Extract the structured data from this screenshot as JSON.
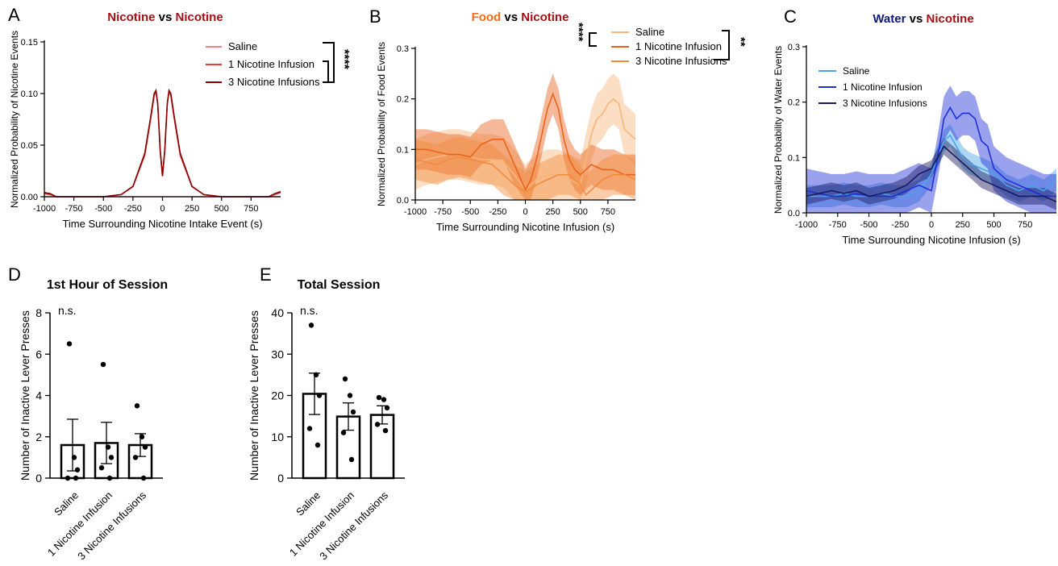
{
  "chart_data": [
    {
      "panel": "A",
      "type": "line",
      "title_parts": [
        {
          "text": "Nicotine",
          "color": "#a50f15"
        },
        {
          "text": " vs ",
          "color": "#000000"
        },
        {
          "text": "Nicotine",
          "color": "#a50f15"
        }
      ],
      "xlabel": "Time Surrounding Nicotine Intake Event (s)",
      "ylabel": "Normalized Probability of Nicotine Events",
      "xlim": [
        -1000,
        1000
      ],
      "ylim": [
        0,
        0.15
      ],
      "xticks": [
        -1000,
        -750,
        -500,
        -250,
        0,
        250,
        500,
        750
      ],
      "yticks": [
        0.0,
        0.05,
        0.1,
        0.15
      ],
      "ytick_labels": [
        "0.00",
        "0.05",
        "0.10",
        "0.15"
      ],
      "significance": "****",
      "series": [
        {
          "name": "Saline",
          "color": "#f08080",
          "x": [
            -1000,
            -500,
            -200,
            0,
            200,
            500,
            1000
          ],
          "y": [
            0,
            0,
            0,
            0,
            0,
            0,
            0
          ]
        },
        {
          "name": "1 Nicotine Infusion",
          "color": "#e0413f",
          "x": [
            -1000,
            -950,
            -900,
            -700,
            -500,
            -350,
            -250,
            -150,
            -100,
            -70,
            -55,
            -40,
            -20,
            0,
            20,
            40,
            55,
            70,
            100,
            150,
            250,
            350,
            500,
            700,
            900,
            950,
            1000
          ],
          "y": [
            0.003,
            0.002,
            0,
            0,
            0,
            0.002,
            0.01,
            0.04,
            0.075,
            0.098,
            0.102,
            0.09,
            0.045,
            0.02,
            0.045,
            0.09,
            0.102,
            0.098,
            0.075,
            0.04,
            0.01,
            0.002,
            0,
            0,
            0,
            0.002,
            0.004
          ]
        },
        {
          "name": "3 Nicotine Infusions",
          "color": "#8b0000",
          "x": [
            -1000,
            -950,
            -900,
            -700,
            -500,
            -350,
            -250,
            -150,
            -100,
            -70,
            -55,
            -40,
            -20,
            0,
            20,
            40,
            55,
            70,
            100,
            150,
            250,
            350,
            500,
            700,
            900,
            950,
            1000
          ],
          "y": [
            0.004,
            0.003,
            0,
            0,
            0,
            0.002,
            0.01,
            0.042,
            0.077,
            0.1,
            0.103,
            0.09,
            0.046,
            0.02,
            0.046,
            0.09,
            0.103,
            0.1,
            0.077,
            0.042,
            0.01,
            0.002,
            0,
            0,
            0,
            0.003,
            0.005
          ]
        }
      ]
    },
    {
      "panel": "B",
      "type": "line",
      "title_parts": [
        {
          "text": "Food",
          "color": "#f26b1d"
        },
        {
          "text": " vs ",
          "color": "#000000"
        },
        {
          "text": "Nicotine",
          "color": "#a50f15"
        }
      ],
      "xlabel": "Time Surrounding Nicotine Infusion (s)",
      "ylabel": "Normalized Probability of Food Events",
      "xlim": [
        -1000,
        1000
      ],
      "ylim": [
        0,
        0.3
      ],
      "xticks": [
        -1000,
        -750,
        -500,
        -250,
        0,
        250,
        500,
        750
      ],
      "yticks": [
        0.0,
        0.1,
        0.2,
        0.3
      ],
      "ytick_labels": [
        "0.0",
        "0.1",
        "0.2",
        "0.3"
      ],
      "significance": [
        "****",
        "**"
      ],
      "series": [
        {
          "name": "Saline",
          "color": "#f7b57a",
          "err": 0.05,
          "x": [
            -1000,
            -900,
            -800,
            -700,
            -600,
            -500,
            -400,
            -300,
            -200,
            -100,
            0,
            50,
            100,
            200,
            300,
            400,
            500,
            550,
            600,
            650,
            700,
            750,
            800,
            850,
            900,
            1000
          ],
          "y": [
            0.07,
            0.08,
            0.085,
            0.09,
            0.09,
            0.085,
            0.08,
            0.08,
            0.075,
            0.05,
            0.02,
            0.03,
            0.04,
            0.05,
            0.05,
            0.04,
            0.03,
            0.08,
            0.13,
            0.16,
            0.17,
            0.19,
            0.2,
            0.19,
            0.14,
            0.12
          ]
        },
        {
          "name": "1 Nicotine Infusion",
          "color": "#e8641c",
          "err": 0.04,
          "x": [
            -1000,
            -900,
            -800,
            -700,
            -600,
            -500,
            -400,
            -300,
            -200,
            -100,
            0,
            50,
            100,
            150,
            200,
            250,
            300,
            350,
            400,
            450,
            500,
            550,
            600,
            700,
            800,
            900,
            1000
          ],
          "y": [
            0.1,
            0.1,
            0.095,
            0.09,
            0.09,
            0.085,
            0.11,
            0.12,
            0.12,
            0.07,
            0.02,
            0.04,
            0.08,
            0.13,
            0.18,
            0.21,
            0.18,
            0.12,
            0.08,
            0.06,
            0.05,
            0.06,
            0.07,
            0.06,
            0.06,
            0.05,
            0.05
          ]
        },
        {
          "name": "3 Nicotine Infusions",
          "color": "#f28c3c",
          "err": 0.04,
          "x": [
            -1000,
            -900,
            -800,
            -700,
            -600,
            -500,
            -400,
            -300,
            -200,
            -100,
            0,
            100,
            200,
            300,
            400,
            500,
            550,
            600,
            700,
            800,
            900,
            1000
          ],
          "y": [
            0.08,
            0.075,
            0.07,
            0.08,
            0.085,
            0.08,
            0.075,
            0.07,
            0.05,
            0.03,
            0.015,
            0.03,
            0.04,
            0.05,
            0.05,
            0.03,
            0.01,
            0.02,
            0.04,
            0.05,
            0.05,
            0.04
          ]
        }
      ]
    },
    {
      "panel": "C",
      "type": "line",
      "title_parts": [
        {
          "text": "Water",
          "color": "#0d1a80"
        },
        {
          "text": " vs ",
          "color": "#000000"
        },
        {
          "text": "Nicotine",
          "color": "#a50f15"
        }
      ],
      "xlabel": "Time Surrounding Nicotine Infusion (s)",
      "ylabel": "Normalized Probability of Water Events",
      "xlim": [
        -1000,
        1000
      ],
      "ylim": [
        0,
        0.3
      ],
      "xticks": [
        -1000,
        -750,
        -500,
        -250,
        0,
        250,
        500,
        750
      ],
      "yticks": [
        0.0,
        0.1,
        0.2,
        0.3
      ],
      "ytick_labels": [
        "0.0",
        "0.1",
        "0.2",
        "0.3"
      ],
      "series": [
        {
          "name": "Saline",
          "color": "#4aa3e6",
          "err": 0.02,
          "x": [
            -1000,
            -900,
            -800,
            -700,
            -600,
            -500,
            -400,
            -300,
            -200,
            -100,
            0,
            50,
            100,
            150,
            200,
            250,
            300,
            400,
            500,
            600,
            700,
            800,
            900,
            1000
          ],
          "y": [
            0.03,
            0.03,
            0.03,
            0.035,
            0.03,
            0.03,
            0.035,
            0.03,
            0.03,
            0.04,
            0.07,
            0.1,
            0.13,
            0.14,
            0.12,
            0.1,
            0.09,
            0.08,
            0.07,
            0.05,
            0.04,
            0.05,
            0.04,
            0.06
          ]
        },
        {
          "name": "1 Nicotine Infusion",
          "color": "#1f2fd6",
          "err": 0.04,
          "x": [
            -1000,
            -900,
            -800,
            -700,
            -600,
            -500,
            -400,
            -300,
            -200,
            -100,
            0,
            50,
            100,
            150,
            200,
            250,
            300,
            350,
            400,
            450,
            500,
            600,
            700,
            800,
            900,
            1000
          ],
          "y": [
            0.04,
            0.035,
            0.03,
            0.03,
            0.035,
            0.03,
            0.03,
            0.03,
            0.04,
            0.05,
            0.04,
            0.1,
            0.17,
            0.19,
            0.17,
            0.18,
            0.18,
            0.17,
            0.13,
            0.12,
            0.08,
            0.06,
            0.05,
            0.04,
            0.03,
            0.03
          ]
        },
        {
          "name": "3 Nicotine Infusions",
          "color": "#1a1a5e",
          "err": 0.015,
          "x": [
            -1000,
            -900,
            -800,
            -700,
            -600,
            -500,
            -400,
            -300,
            -200,
            -100,
            0,
            50,
            100,
            150,
            200,
            300,
            400,
            500,
            600,
            700,
            800,
            900,
            1000
          ],
          "y": [
            0.03,
            0.035,
            0.04,
            0.035,
            0.04,
            0.03,
            0.035,
            0.04,
            0.05,
            0.07,
            0.08,
            0.1,
            0.12,
            0.11,
            0.1,
            0.08,
            0.06,
            0.05,
            0.04,
            0.03,
            0.03,
            0.03,
            0.02
          ]
        }
      ]
    },
    {
      "panel": "D",
      "type": "bar",
      "title": "1st Hour of Session",
      "ylabel": "Number of Inactive Lever Presses",
      "categories": [
        "Saline",
        "1 Nicotine Infusion",
        "3 Nicotine Infusions"
      ],
      "values": [
        1.6,
        1.7,
        1.6
      ],
      "sem": [
        1.25,
        1.0,
        0.55
      ],
      "points": [
        [
          6.5,
          1.0,
          0.4,
          0.0,
          0.0
        ],
        [
          5.5,
          1.5,
          1.0,
          0.5,
          0.0
        ],
        [
          3.5,
          2.0,
          1.5,
          1.0,
          0.0
        ]
      ],
      "ylim": [
        0,
        8
      ],
      "yticks": [
        0,
        2,
        4,
        6,
        8
      ],
      "annotation": "n.s."
    },
    {
      "panel": "E",
      "type": "bar",
      "title": "Total Session",
      "ylabel": "Number of Inactive Lever Presses",
      "categories": [
        "Saline",
        "1 Nicotine Infusion",
        "3 Nicotine Infusions"
      ],
      "values": [
        20.4,
        14.9,
        15.3
      ],
      "sem": [
        5.0,
        3.3,
        2.2
      ],
      "points": [
        [
          37,
          25,
          20,
          12,
          8
        ],
        [
          24,
          20,
          16,
          11,
          4.5
        ],
        [
          19.5,
          19,
          17,
          13,
          11.5
        ]
      ],
      "ylim": [
        0,
        40
      ],
      "yticks": [
        0,
        10,
        20,
        30,
        40
      ],
      "annotation": "n.s."
    }
  ],
  "panel_labels": [
    "A",
    "B",
    "C",
    "D",
    "E"
  ]
}
